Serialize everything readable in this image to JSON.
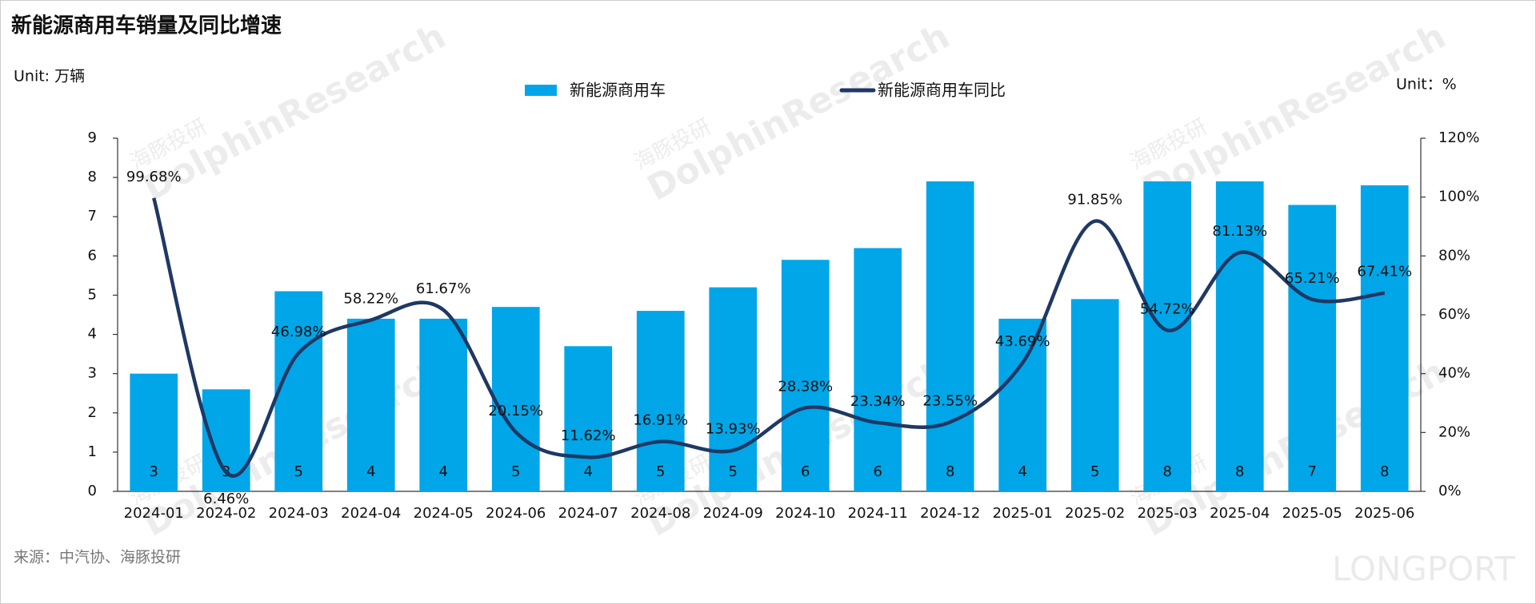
{
  "chart_data": {
    "type": "bar-line",
    "title": "新能源商用车销量及同比增速",
    "y_axis_label": "Unit: 万辆",
    "y2_axis_label": "Unit：%",
    "source": "来源：中汽协、海豚投研",
    "watermarks": [
      "海豚投研",
      "DolphinResearch",
      "LONGPORT"
    ],
    "categories": [
      "2024-01",
      "2024-02",
      "2024-03",
      "2024-04",
      "2024-05",
      "2024-06",
      "2024-07",
      "2024-08",
      "2024-09",
      "2024-10",
      "2024-11",
      "2024-12",
      "2025-01",
      "2025-02",
      "2025-03",
      "2025-04",
      "2025-05",
      "2025-06"
    ],
    "series": [
      {
        "name": "新能源商用车",
        "type": "bar",
        "color": "#00a6e8",
        "values": [
          3.0,
          2.6,
          5.1,
          4.4,
          4.4,
          4.7,
          3.7,
          4.6,
          5.2,
          5.9,
          6.2,
          7.9,
          4.4,
          4.9,
          7.9,
          7.9,
          7.3,
          7.8
        ],
        "value_labels": [
          "3",
          "3",
          "5",
          "4",
          "4",
          "5",
          "4",
          "5",
          "5",
          "6",
          "6",
          "8",
          "4",
          "5",
          "8",
          "8",
          "7",
          "8"
        ]
      },
      {
        "name": "新能源商用车同比",
        "type": "line",
        "axis": "y2",
        "color": "#1f3864",
        "values": [
          99.68,
          6.46,
          46.98,
          58.22,
          61.67,
          20.15,
          11.62,
          16.91,
          13.93,
          28.38,
          23.34,
          23.55,
          43.69,
          91.85,
          54.72,
          81.13,
          65.21,
          67.41
        ],
        "value_labels": [
          "99.68%",
          "6.46%",
          "46.98%",
          "58.22%",
          "61.67%",
          "20.15%",
          "11.62%",
          "16.91%",
          "13.93%",
          "28.38%",
          "23.34%",
          "23.55%",
          "43.69%",
          "91.85%",
          "54.72%",
          "81.13%",
          "65.21%",
          "67.41%"
        ]
      }
    ],
    "ylim": [
      0,
      9
    ],
    "yticks": [
      0,
      1,
      2,
      3,
      4,
      5,
      6,
      7,
      8,
      9
    ],
    "y2lim": [
      0,
      120
    ],
    "y2ticks": [
      {
        "value": 0,
        "label": "0%"
      },
      {
        "value": 20,
        "label": "20%"
      },
      {
        "value": 40,
        "label": "40%"
      },
      {
        "value": 60,
        "label": "60%"
      },
      {
        "value": 80,
        "label": "80%"
      },
      {
        "value": 100,
        "label": "100%"
      },
      {
        "value": 120,
        "label": "120%"
      }
    ],
    "grid": false
  }
}
